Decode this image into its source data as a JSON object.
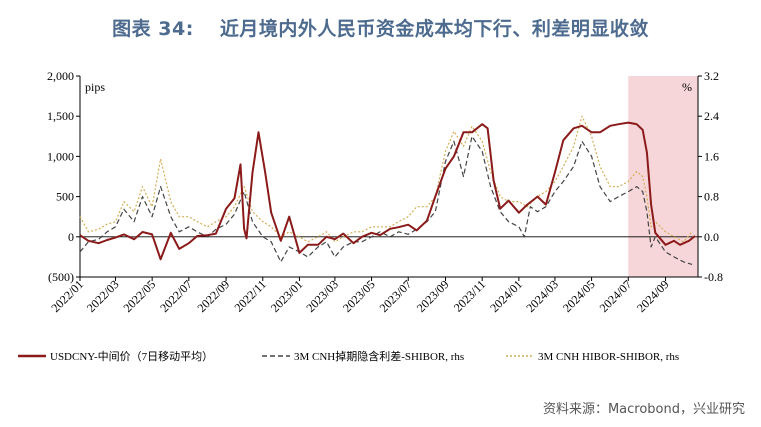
{
  "figure": {
    "number": "图表 34:",
    "title": "近月境内外人民币资金成本均下行、利差明显收敛",
    "source": "资料来源：Macrobond，兴业研究"
  },
  "chart_data": {
    "type": "line",
    "left_axis": {
      "unit": "pips",
      "ticks": [
        "2,000",
        "1,500",
        "1,000",
        "500",
        "0",
        "(500)"
      ],
      "ylim": [
        -500,
        2000
      ]
    },
    "right_axis": {
      "unit": "%",
      "ticks": [
        "3.2",
        "2.4",
        "1.6",
        "0.8",
        "0.0",
        "-0.8"
      ],
      "ylim": [
        -0.8,
        3.2
      ]
    },
    "x_ticks": [
      "2022/01",
      "2022/03",
      "2022/05",
      "2022/07",
      "2022/09",
      "2022/11",
      "2023/01",
      "2023/03",
      "2023/05",
      "2023/07",
      "2023/09",
      "2023/11",
      "2024/01",
      "2024/03",
      "2024/05",
      "2024/07",
      "2024/09"
    ],
    "highlight": {
      "from": "2024-07-01",
      "to": "2024-10-25",
      "color": "#f6d6d8"
    },
    "series": [
      {
        "name": "USDCNY-中间价（7日移动平均）",
        "axis": "left",
        "color": "#8b1a1a",
        "style": "solid",
        "points": [
          [
            "2022-01-01",
            20
          ],
          [
            "2022-01-15",
            -50
          ],
          [
            "2022-02-01",
            -80
          ],
          [
            "2022-02-15",
            -40
          ],
          [
            "2022-03-01",
            -10
          ],
          [
            "2022-03-15",
            30
          ],
          [
            "2022-04-01",
            -30
          ],
          [
            "2022-04-15",
            60
          ],
          [
            "2022-05-01",
            30
          ],
          [
            "2022-05-15",
            -280
          ],
          [
            "2022-06-01",
            50
          ],
          [
            "2022-06-15",
            -150
          ],
          [
            "2022-07-01",
            -80
          ],
          [
            "2022-07-15",
            10
          ],
          [
            "2022-08-01",
            20
          ],
          [
            "2022-08-15",
            40
          ],
          [
            "2022-09-01",
            350
          ],
          [
            "2022-09-15",
            480
          ],
          [
            "2022-09-25",
            900
          ],
          [
            "2022-10-01",
            100
          ],
          [
            "2022-10-05",
            -20
          ],
          [
            "2022-10-15",
            800
          ],
          [
            "2022-10-25",
            1300
          ],
          [
            "2022-11-05",
            800
          ],
          [
            "2022-11-15",
            300
          ],
          [
            "2022-12-01",
            -50
          ],
          [
            "2022-12-15",
            250
          ],
          [
            "2023-01-01",
            -200
          ],
          [
            "2023-01-15",
            -100
          ],
          [
            "2023-02-01",
            -100
          ],
          [
            "2023-02-15",
            0
          ],
          [
            "2023-03-01",
            -30
          ],
          [
            "2023-03-15",
            40
          ],
          [
            "2023-04-01",
            -80
          ],
          [
            "2023-04-15",
            0
          ],
          [
            "2023-05-01",
            50
          ],
          [
            "2023-05-15",
            20
          ],
          [
            "2023-06-01",
            100
          ],
          [
            "2023-06-15",
            120
          ],
          [
            "2023-07-01",
            150
          ],
          [
            "2023-07-15",
            80
          ],
          [
            "2023-08-01",
            200
          ],
          [
            "2023-08-15",
            500
          ],
          [
            "2023-09-01",
            850
          ],
          [
            "2023-09-15",
            1000
          ],
          [
            "2023-10-01",
            1300
          ],
          [
            "2023-10-15",
            1300
          ],
          [
            "2023-11-01",
            1400
          ],
          [
            "2023-11-10",
            1350
          ],
          [
            "2023-11-20",
            700
          ],
          [
            "2023-12-01",
            350
          ],
          [
            "2023-12-15",
            450
          ],
          [
            "2024-01-01",
            300
          ],
          [
            "2024-01-15",
            400
          ],
          [
            "2024-02-01",
            500
          ],
          [
            "2024-02-15",
            400
          ],
          [
            "2024-03-01",
            800
          ],
          [
            "2024-03-15",
            1200
          ],
          [
            "2024-04-01",
            1350
          ],
          [
            "2024-04-15",
            1380
          ],
          [
            "2024-05-01",
            1300
          ],
          [
            "2024-05-15",
            1300
          ],
          [
            "2024-06-01",
            1380
          ],
          [
            "2024-06-15",
            1400
          ],
          [
            "2024-07-01",
            1420
          ],
          [
            "2024-07-15",
            1400
          ],
          [
            "2024-07-25",
            1330
          ],
          [
            "2024-08-01",
            1050
          ],
          [
            "2024-08-08",
            400
          ],
          [
            "2024-08-15",
            50
          ],
          [
            "2024-09-01",
            -100
          ],
          [
            "2024-09-15",
            -50
          ],
          [
            "2024-09-25",
            -100
          ],
          [
            "2024-10-10",
            -50
          ],
          [
            "2024-10-20",
            10
          ]
        ]
      },
      {
        "name": "3M CNH掉期隐含利差-SHIBOR, rhs",
        "axis": "right",
        "color": "#444444",
        "style": "dashed",
        "points": [
          [
            "2022-01-01",
            -0.3
          ],
          [
            "2022-01-15",
            -0.1
          ],
          [
            "2022-02-01",
            -0.05
          ],
          [
            "2022-02-15",
            0.1
          ],
          [
            "2022-03-01",
            0.2
          ],
          [
            "2022-03-15",
            0.55
          ],
          [
            "2022-04-01",
            0.3
          ],
          [
            "2022-04-15",
            0.8
          ],
          [
            "2022-05-01",
            0.4
          ],
          [
            "2022-05-15",
            1.0
          ],
          [
            "2022-06-01",
            0.4
          ],
          [
            "2022-06-15",
            0.1
          ],
          [
            "2022-07-01",
            0.2
          ],
          [
            "2022-07-15",
            0.1
          ],
          [
            "2022-08-01",
            0.0
          ],
          [
            "2022-08-15",
            0.15
          ],
          [
            "2022-09-01",
            0.25
          ],
          [
            "2022-09-15",
            0.45
          ],
          [
            "2022-10-01",
            0.9
          ],
          [
            "2022-10-15",
            0.3
          ],
          [
            "2022-11-01",
            0.0
          ],
          [
            "2022-11-15",
            -0.1
          ],
          [
            "2022-12-01",
            -0.5
          ],
          [
            "2022-12-15",
            -0.2
          ],
          [
            "2023-01-01",
            -0.3
          ],
          [
            "2023-01-15",
            -0.4
          ],
          [
            "2023-02-01",
            -0.2
          ],
          [
            "2023-02-15",
            -0.1
          ],
          [
            "2023-03-01",
            -0.4
          ],
          [
            "2023-03-15",
            -0.2
          ],
          [
            "2023-04-01",
            -0.1
          ],
          [
            "2023-04-15",
            -0.1
          ],
          [
            "2023-05-01",
            0.0
          ],
          [
            "2023-05-15",
            0.1
          ],
          [
            "2023-06-01",
            0.0
          ],
          [
            "2023-06-15",
            0.1
          ],
          [
            "2023-07-01",
            0.05
          ],
          [
            "2023-07-15",
            0.15
          ],
          [
            "2023-08-01",
            0.3
          ],
          [
            "2023-08-15",
            0.5
          ],
          [
            "2023-09-01",
            1.5
          ],
          [
            "2023-09-15",
            1.9
          ],
          [
            "2023-10-01",
            1.2
          ],
          [
            "2023-10-15",
            2.0
          ],
          [
            "2023-11-01",
            1.7
          ],
          [
            "2023-11-15",
            1.0
          ],
          [
            "2023-12-01",
            0.5
          ],
          [
            "2023-12-15",
            0.3
          ],
          [
            "2024-01-01",
            0.2
          ],
          [
            "2024-01-10",
            0.0
          ],
          [
            "2024-01-20",
            0.6
          ],
          [
            "2024-02-01",
            0.5
          ],
          [
            "2024-02-15",
            0.6
          ],
          [
            "2024-03-01",
            0.9
          ],
          [
            "2024-03-15",
            1.1
          ],
          [
            "2024-04-01",
            1.4
          ],
          [
            "2024-04-15",
            1.9
          ],
          [
            "2024-05-01",
            1.6
          ],
          [
            "2024-05-15",
            1.0
          ],
          [
            "2024-06-01",
            0.7
          ],
          [
            "2024-06-15",
            0.8
          ],
          [
            "2024-07-01",
            0.9
          ],
          [
            "2024-07-15",
            1.0
          ],
          [
            "2024-07-25",
            0.9
          ],
          [
            "2024-08-01",
            0.5
          ],
          [
            "2024-08-08",
            -0.2
          ],
          [
            "2024-08-15",
            0.0
          ],
          [
            "2024-09-01",
            -0.3
          ],
          [
            "2024-09-15",
            -0.4
          ],
          [
            "2024-10-01",
            -0.5
          ],
          [
            "2024-10-15",
            -0.55
          ]
        ]
      },
      {
        "name": "3M CNH HIBOR-SHIBOR, rhs",
        "axis": "right",
        "color": "#d4ad55",
        "style": "dotted",
        "points": [
          [
            "2022-01-01",
            0.4
          ],
          [
            "2022-01-15",
            0.1
          ],
          [
            "2022-02-01",
            0.15
          ],
          [
            "2022-02-15",
            0.25
          ],
          [
            "2022-03-01",
            0.3
          ],
          [
            "2022-03-15",
            0.7
          ],
          [
            "2022-04-01",
            0.5
          ],
          [
            "2022-04-15",
            1.0
          ],
          [
            "2022-05-01",
            0.6
          ],
          [
            "2022-05-15",
            1.55
          ],
          [
            "2022-06-01",
            0.7
          ],
          [
            "2022-06-15",
            0.4
          ],
          [
            "2022-07-01",
            0.4
          ],
          [
            "2022-07-15",
            0.3
          ],
          [
            "2022-08-01",
            0.2
          ],
          [
            "2022-08-15",
            0.3
          ],
          [
            "2022-09-01",
            0.4
          ],
          [
            "2022-09-15",
            0.6
          ],
          [
            "2022-10-01",
            1.0
          ],
          [
            "2022-10-15",
            0.5
          ],
          [
            "2022-11-01",
            0.3
          ],
          [
            "2022-11-15",
            0.2
          ],
          [
            "2022-12-01",
            0.0
          ],
          [
            "2022-12-15",
            0.1
          ],
          [
            "2023-01-01",
            0.0
          ],
          [
            "2023-01-15",
            -0.1
          ],
          [
            "2023-02-01",
            0.0
          ],
          [
            "2023-02-15",
            0.1
          ],
          [
            "2023-03-01",
            -0.1
          ],
          [
            "2023-03-15",
            0.0
          ],
          [
            "2023-04-01",
            0.1
          ],
          [
            "2023-04-15",
            0.1
          ],
          [
            "2023-05-01",
            0.2
          ],
          [
            "2023-05-15",
            0.2
          ],
          [
            "2023-06-01",
            0.2
          ],
          [
            "2023-06-15",
            0.3
          ],
          [
            "2023-07-01",
            0.4
          ],
          [
            "2023-07-15",
            0.6
          ],
          [
            "2023-08-01",
            0.6
          ],
          [
            "2023-08-15",
            0.8
          ],
          [
            "2023-09-01",
            1.7
          ],
          [
            "2023-09-15",
            2.1
          ],
          [
            "2023-10-01",
            1.8
          ],
          [
            "2023-10-15",
            2.2
          ],
          [
            "2023-11-01",
            1.9
          ],
          [
            "2023-11-15",
            1.3
          ],
          [
            "2023-12-01",
            0.8
          ],
          [
            "2023-12-15",
            0.7
          ],
          [
            "2024-01-01",
            0.7
          ],
          [
            "2024-01-15",
            0.6
          ],
          [
            "2024-02-01",
            0.8
          ],
          [
            "2024-02-15",
            0.9
          ],
          [
            "2024-03-01",
            1.1
          ],
          [
            "2024-03-15",
            1.4
          ],
          [
            "2024-04-01",
            1.8
          ],
          [
            "2024-04-15",
            2.4
          ],
          [
            "2024-05-01",
            2.0
          ],
          [
            "2024-05-15",
            1.4
          ],
          [
            "2024-06-01",
            1.0
          ],
          [
            "2024-06-15",
            1.0
          ],
          [
            "2024-07-01",
            1.1
          ],
          [
            "2024-07-15",
            1.3
          ],
          [
            "2024-07-25",
            1.2
          ],
          [
            "2024-08-01",
            0.8
          ],
          [
            "2024-08-08",
            0.2
          ],
          [
            "2024-08-15",
            0.3
          ],
          [
            "2024-09-01",
            0.1
          ],
          [
            "2024-09-15",
            0.0
          ],
          [
            "2024-10-01",
            -0.1
          ],
          [
            "2024-10-15",
            0.1
          ]
        ]
      }
    ]
  }
}
